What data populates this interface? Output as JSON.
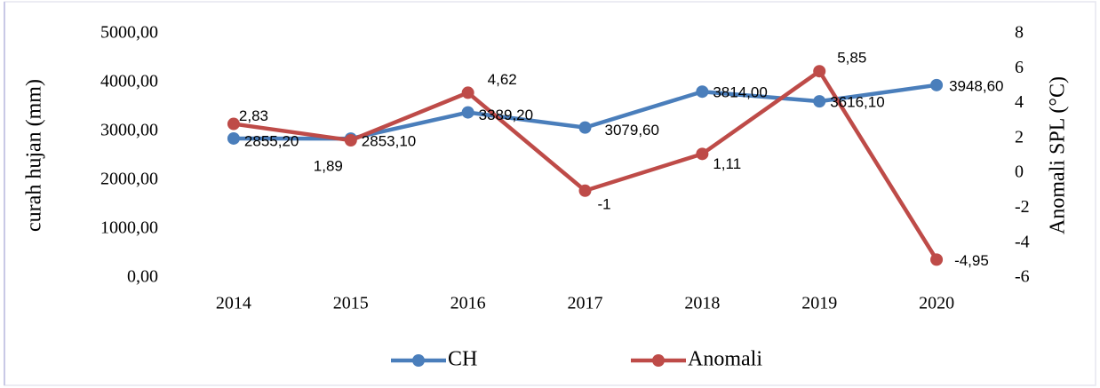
{
  "chart_data": {
    "type": "line",
    "categories": [
      "2014",
      "2015",
      "2016",
      "2017",
      "2018",
      "2019",
      "2020"
    ],
    "series": [
      {
        "name": "CH",
        "color": "#4a7ebb",
        "values": [
          2855.2,
          2853.1,
          3389.2,
          3079.6,
          3814.0,
          3616.1,
          3948.6
        ],
        "value_labels": [
          "2855,20",
          "2853,10",
          "3389,20",
          "3079,60",
          "3814,00",
          "3616,10",
          "3948,60"
        ]
      },
      {
        "name": "Anomali",
        "color": "#be4b48",
        "axis": "y2",
        "values": [
          2.83,
          1.89,
          4.62,
          -1,
          1.11,
          5.85,
          -4.95
        ],
        "value_labels": [
          "2,83",
          "1,89",
          "4,62",
          "-1",
          "1,11",
          "5,85",
          "-4,95"
        ]
      }
    ],
    "ylabel": "curah hujan (mm)",
    "y2label": "Anomali SPL (°C)",
    "ylim": [
      0,
      5000
    ],
    "yticks": [
      {
        "value": 0,
        "label": "0,00"
      },
      {
        "value": 1000,
        "label": "1000,00"
      },
      {
        "value": 2000,
        "label": "2000,00"
      },
      {
        "value": 3000,
        "label": "3000,00"
      },
      {
        "value": 4000,
        "label": "4000,00"
      },
      {
        "value": 5000,
        "label": "5000,00"
      }
    ],
    "y2lim": [
      -6,
      8
    ],
    "y2ticks": [
      -6,
      -4,
      -2,
      0,
      2,
      4,
      6,
      8
    ],
    "grid": false,
    "legend": "bottom"
  }
}
